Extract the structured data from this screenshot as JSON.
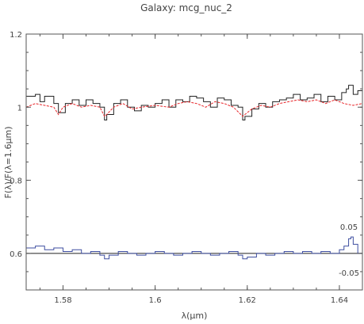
{
  "chart_data": {
    "type": "line",
    "title": "Galaxy: mcg_nuc_2",
    "xlabel": "λ(μm)",
    "ylabel": "F(λ)/F(λ=1.6μm)",
    "xlim": [
      1.572,
      1.645
    ],
    "ylim": [
      0.5,
      1.2
    ],
    "x_ticks": [
      "1.58",
      "1.6",
      "1.62",
      "1.64"
    ],
    "x_tick_values": [
      1.58,
      1.6,
      1.62,
      1.64
    ],
    "y_ticks": [
      "0.6",
      "0.8",
      "1",
      "1.2"
    ],
    "y_tick_values": [
      0.6,
      0.8,
      1.0,
      1.2
    ],
    "grid": false,
    "residual_annotations": {
      "upper": "0.05",
      "lower": "-0.05"
    },
    "residual_zero_line": 0.6,
    "colors": {
      "observed": "#222222",
      "model": "#e8262a",
      "residual": "#3e4ea0",
      "zero_line": "#222222",
      "axis": "#555555"
    },
    "series": [
      {
        "id": "observed",
        "style": "step",
        "points": [
          [
            1.572,
            1.03
          ],
          [
            1.574,
            1.035
          ],
          [
            1.575,
            1.015
          ],
          [
            1.576,
            1.03
          ],
          [
            1.578,
            1.01
          ],
          [
            1.579,
            0.985
          ],
          [
            1.5805,
            1.01
          ],
          [
            1.582,
            1.02
          ],
          [
            1.5835,
            1.005
          ],
          [
            1.585,
            1.02
          ],
          [
            1.5865,
            1.01
          ],
          [
            1.588,
            1.0
          ],
          [
            1.589,
            0.965
          ],
          [
            1.5895,
            0.98
          ],
          [
            1.591,
            1.01
          ],
          [
            1.5925,
            1.02
          ],
          [
            1.594,
            1.0
          ],
          [
            1.5955,
            0.99
          ],
          [
            1.597,
            1.005
          ],
          [
            1.5985,
            1.0
          ],
          [
            1.6,
            1.01
          ],
          [
            1.6015,
            1.02
          ],
          [
            1.603,
            1.0
          ],
          [
            1.6045,
            1.02
          ],
          [
            1.606,
            1.015
          ],
          [
            1.6075,
            1.03
          ],
          [
            1.609,
            1.025
          ],
          [
            1.6105,
            1.015
          ],
          [
            1.612,
            1.0
          ],
          [
            1.6135,
            1.025
          ],
          [
            1.615,
            1.02
          ],
          [
            1.6165,
            1.005
          ],
          [
            1.618,
            1.0
          ],
          [
            1.619,
            0.965
          ],
          [
            1.6195,
            0.975
          ],
          [
            1.621,
            0.995
          ],
          [
            1.6225,
            1.01
          ],
          [
            1.624,
            1.0
          ],
          [
            1.6255,
            1.015
          ],
          [
            1.627,
            1.02
          ],
          [
            1.6285,
            1.025
          ],
          [
            1.63,
            1.035
          ],
          [
            1.6315,
            1.02
          ],
          [
            1.633,
            1.025
          ],
          [
            1.6345,
            1.035
          ],
          [
            1.636,
            1.015
          ],
          [
            1.6375,
            1.03
          ],
          [
            1.639,
            1.02
          ],
          [
            1.6405,
            1.04
          ],
          [
            1.6415,
            1.05
          ],
          [
            1.642,
            1.06
          ],
          [
            1.643,
            1.035
          ],
          [
            1.644,
            1.045
          ],
          [
            1.645,
            1.045
          ]
        ]
      },
      {
        "id": "model",
        "style": "line",
        "points": [
          [
            1.572,
            1.0
          ],
          [
            1.574,
            1.01
          ],
          [
            1.576,
            1.005
          ],
          [
            1.578,
            1.0
          ],
          [
            1.579,
            0.98
          ],
          [
            1.58,
            1.0
          ],
          [
            1.582,
            1.01
          ],
          [
            1.584,
            1.0
          ],
          [
            1.586,
            1.005
          ],
          [
            1.588,
            1.0
          ],
          [
            1.589,
            0.975
          ],
          [
            1.5895,
            0.98
          ],
          [
            1.591,
            1.0
          ],
          [
            1.593,
            1.01
          ],
          [
            1.595,
            0.995
          ],
          [
            1.597,
            1.0
          ],
          [
            1.6,
            1.005
          ],
          [
            1.603,
            1.0
          ],
          [
            1.605,
            1.01
          ],
          [
            1.607,
            1.015
          ],
          [
            1.609,
            1.01
          ],
          [
            1.611,
            1.0
          ],
          [
            1.613,
            1.015
          ],
          [
            1.615,
            1.01
          ],
          [
            1.617,
            1.0
          ],
          [
            1.619,
            0.975
          ],
          [
            1.6195,
            0.98
          ],
          [
            1.621,
            0.995
          ],
          [
            1.623,
            1.005
          ],
          [
            1.625,
            1.0
          ],
          [
            1.627,
            1.01
          ],
          [
            1.629,
            1.015
          ],
          [
            1.631,
            1.02
          ],
          [
            1.633,
            1.015
          ],
          [
            1.635,
            1.02
          ],
          [
            1.637,
            1.01
          ],
          [
            1.639,
            1.02
          ],
          [
            1.641,
            1.01
          ],
          [
            1.643,
            1.005
          ],
          [
            1.645,
            1.01
          ]
        ]
      },
      {
        "id": "residual",
        "style": "step",
        "points": [
          [
            1.572,
            0.615
          ],
          [
            1.574,
            0.62
          ],
          [
            1.576,
            0.61
          ],
          [
            1.578,
            0.615
          ],
          [
            1.58,
            0.605
          ],
          [
            1.582,
            0.61
          ],
          [
            1.584,
            0.6
          ],
          [
            1.586,
            0.605
          ],
          [
            1.588,
            0.595
          ],
          [
            1.589,
            0.585
          ],
          [
            1.59,
            0.595
          ],
          [
            1.592,
            0.605
          ],
          [
            1.594,
            0.6
          ],
          [
            1.596,
            0.595
          ],
          [
            1.598,
            0.6
          ],
          [
            1.6,
            0.605
          ],
          [
            1.602,
            0.6
          ],
          [
            1.604,
            0.595
          ],
          [
            1.606,
            0.6
          ],
          [
            1.608,
            0.605
          ],
          [
            1.61,
            0.6
          ],
          [
            1.612,
            0.595
          ],
          [
            1.614,
            0.6
          ],
          [
            1.616,
            0.605
          ],
          [
            1.618,
            0.595
          ],
          [
            1.619,
            0.585
          ],
          [
            1.62,
            0.59
          ],
          [
            1.622,
            0.6
          ],
          [
            1.624,
            0.595
          ],
          [
            1.626,
            0.6
          ],
          [
            1.628,
            0.605
          ],
          [
            1.63,
            0.6
          ],
          [
            1.632,
            0.605
          ],
          [
            1.634,
            0.6
          ],
          [
            1.636,
            0.605
          ],
          [
            1.638,
            0.6
          ],
          [
            1.64,
            0.61
          ],
          [
            1.641,
            0.62
          ],
          [
            1.642,
            0.64
          ],
          [
            1.6425,
            0.645
          ],
          [
            1.643,
            0.625
          ],
          [
            1.644,
            0.6
          ],
          [
            1.645,
            0.58
          ]
        ]
      }
    ]
  }
}
